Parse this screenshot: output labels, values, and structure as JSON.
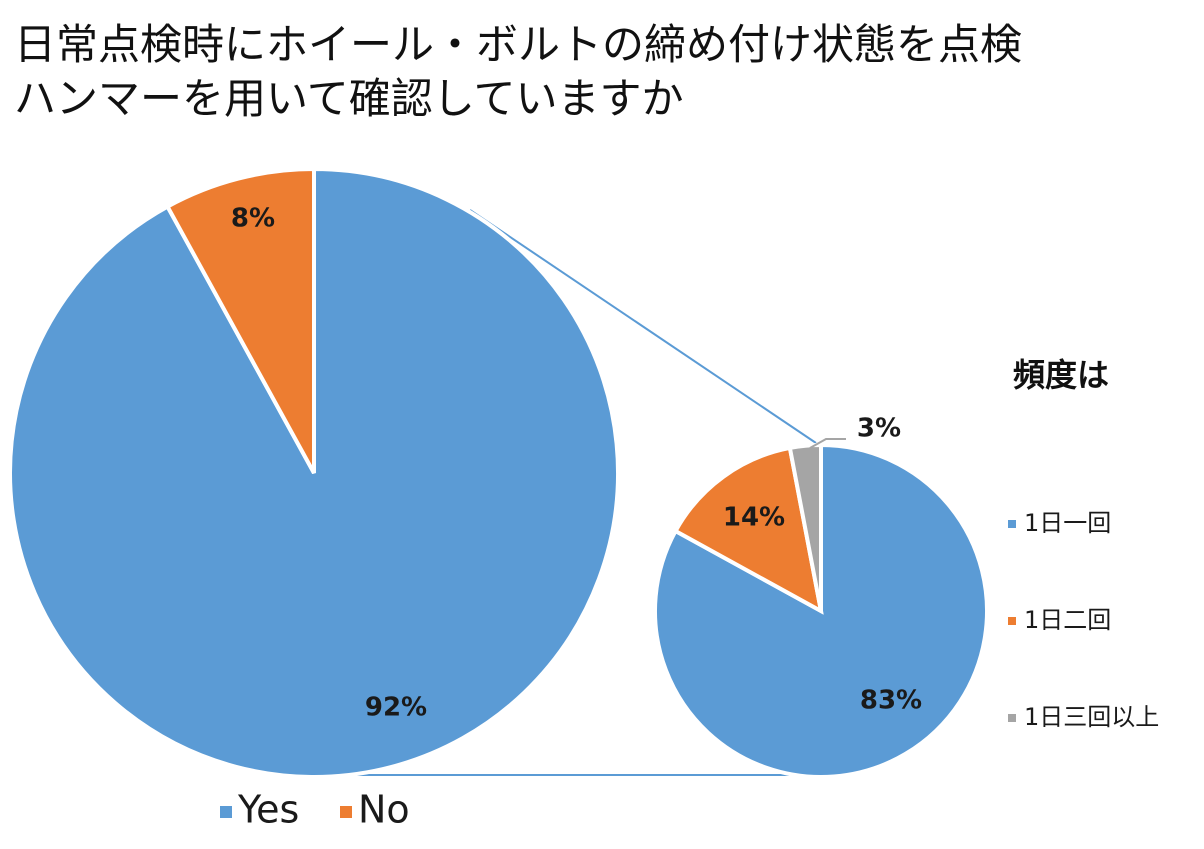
{
  "title_lines": [
    "日常点検時にホイール・ボルトの締め付け状態を点検",
    "ハンマーを用いて確認していますか"
  ],
  "chart_data": [
    {
      "type": "pie",
      "title": "",
      "slices": [
        {
          "label": "Yes",
          "value": 92,
          "display": "92%",
          "color": "#5B9BD5"
        },
        {
          "label": "No",
          "value": 8,
          "display": "8%",
          "color": "#ED7D31"
        }
      ],
      "legend": {
        "placement": "bottom",
        "entries": [
          "Yes",
          "No"
        ]
      }
    },
    {
      "type": "pie",
      "title": "頻度は",
      "slices": [
        {
          "label": "1日一回",
          "value": 83,
          "display": "83%",
          "color": "#5B9BD5"
        },
        {
          "label": "1日二回",
          "value": 14,
          "display": "14%",
          "color": "#ED7D31"
        },
        {
          "label": "1日三回以上",
          "value": 3,
          "display": "3%",
          "color": "#A5A5A5"
        }
      ],
      "legend": {
        "placement": "right",
        "entries": [
          "1日一回",
          "1日二回",
          "1日三回以上"
        ]
      }
    }
  ]
}
